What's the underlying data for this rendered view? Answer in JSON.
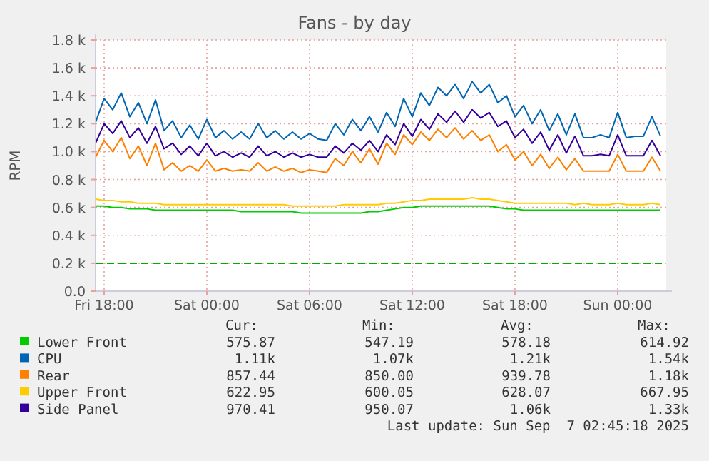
{
  "chart_data": {
    "type": "line",
    "title": "Fans - by day",
    "ylabel": "RPM",
    "x": [
      "2025-09-05T17:30",
      "2025-09-05T18:00",
      "2025-09-05T18:30",
      "2025-09-05T19:00",
      "2025-09-05T19:30",
      "2025-09-05T20:00",
      "2025-09-05T20:30",
      "2025-09-05T21:00",
      "2025-09-05T21:30",
      "2025-09-05T22:00",
      "2025-09-05T22:30",
      "2025-09-05T23:00",
      "2025-09-05T23:30",
      "2025-09-06T00:00",
      "2025-09-06T00:30",
      "2025-09-06T01:00",
      "2025-09-06T01:30",
      "2025-09-06T02:00",
      "2025-09-06T02:30",
      "2025-09-06T03:00",
      "2025-09-06T03:30",
      "2025-09-06T04:00",
      "2025-09-06T04:30",
      "2025-09-06T05:00",
      "2025-09-06T05:30",
      "2025-09-06T06:00",
      "2025-09-06T06:30",
      "2025-09-06T07:00",
      "2025-09-06T07:30",
      "2025-09-06T08:00",
      "2025-09-06T08:30",
      "2025-09-06T09:00",
      "2025-09-06T09:30",
      "2025-09-06T10:00",
      "2025-09-06T10:30",
      "2025-09-06T11:00",
      "2025-09-06T11:30",
      "2025-09-06T12:00",
      "2025-09-06T12:30",
      "2025-09-06T13:00",
      "2025-09-06T13:30",
      "2025-09-06T14:00",
      "2025-09-06T14:30",
      "2025-09-06T15:00",
      "2025-09-06T15:30",
      "2025-09-06T16:00",
      "2025-09-06T16:30",
      "2025-09-06T17:00",
      "2025-09-06T17:30",
      "2025-09-06T18:00",
      "2025-09-06T18:30",
      "2025-09-06T19:00",
      "2025-09-06T19:30",
      "2025-09-06T20:00",
      "2025-09-06T20:30",
      "2025-09-06T21:00",
      "2025-09-06T21:30",
      "2025-09-06T22:00",
      "2025-09-06T22:30",
      "2025-09-06T23:00",
      "2025-09-06T23:30",
      "2025-09-07T00:00",
      "2025-09-07T00:30",
      "2025-09-07T01:00",
      "2025-09-07T01:30",
      "2025-09-07T02:00",
      "2025-09-07T02:30"
    ],
    "xlim": [
      "2025-09-05T17:30",
      "2025-09-07T02:50"
    ],
    "xticks": [
      {
        "value": "2025-09-05T18:00",
        "label": "Fri 18:00"
      },
      {
        "value": "2025-09-06T00:00",
        "label": "Sat 00:00"
      },
      {
        "value": "2025-09-06T06:00",
        "label": "Sat 06:00"
      },
      {
        "value": "2025-09-06T12:00",
        "label": "Sat 12:00"
      },
      {
        "value": "2025-09-06T18:00",
        "label": "Sat 18:00"
      },
      {
        "value": "2025-09-07T00:00",
        "label": "Sun 00:00"
      }
    ],
    "ylim": [
      0,
      1800
    ],
    "yticks": [
      {
        "value": 0,
        "label": "0.0"
      },
      {
        "value": 200,
        "label": "0.2 k"
      },
      {
        "value": 400,
        "label": "0.4 k"
      },
      {
        "value": 600,
        "label": "0.6 k"
      },
      {
        "value": 800,
        "label": "0.8 k"
      },
      {
        "value": 1000,
        "label": "1.0 k"
      },
      {
        "value": 1200,
        "label": "1.2 k"
      },
      {
        "value": 1400,
        "label": "1.4 k"
      },
      {
        "value": 1600,
        "label": "1.6 k"
      },
      {
        "value": 1800,
        "label": "1.8 k"
      }
    ],
    "grid": true,
    "legend": "bottom left",
    "line_style": "solid",
    "ref_lines": [
      {
        "axis": "y",
        "value": 200,
        "color": "#00aa00",
        "line_style": "dashed"
      }
    ],
    "series": [
      {
        "name": "Lower Front",
        "color": "#00cc00",
        "values": [
          610,
          610,
          600,
          600,
          590,
          590,
          590,
          580,
          580,
          580,
          580,
          580,
          580,
          580,
          580,
          580,
          580,
          570,
          570,
          570,
          570,
          570,
          570,
          570,
          560,
          560,
          560,
          560,
          560,
          560,
          560,
          560,
          570,
          570,
          580,
          590,
          600,
          600,
          610,
          610,
          610,
          610,
          610,
          610,
          610,
          610,
          610,
          600,
          590,
          590,
          580,
          580,
          580,
          580,
          580,
          580,
          580,
          580,
          580,
          580,
          580,
          580,
          580,
          580,
          580,
          580,
          580
        ]
      },
      {
        "name": "CPU",
        "color": "#0066b3",
        "values": [
          1210,
          1380,
          1300,
          1420,
          1250,
          1350,
          1200,
          1370,
          1150,
          1220,
          1100,
          1190,
          1090,
          1230,
          1100,
          1150,
          1090,
          1140,
          1090,
          1200,
          1100,
          1150,
          1090,
          1140,
          1090,
          1130,
          1090,
          1080,
          1200,
          1120,
          1230,
          1150,
          1250,
          1140,
          1280,
          1180,
          1380,
          1250,
          1420,
          1330,
          1460,
          1400,
          1480,
          1380,
          1500,
          1420,
          1480,
          1350,
          1400,
          1250,
          1330,
          1200,
          1300,
          1150,
          1270,
          1120,
          1270,
          1100,
          1100,
          1120,
          1100,
          1280,
          1100,
          1110,
          1110,
          1250,
          1110
        ]
      },
      {
        "name": "Rear",
        "color": "#ff8000",
        "values": [
          960,
          1080,
          1000,
          1100,
          950,
          1040,
          900,
          1060,
          870,
          920,
          860,
          900,
          860,
          940,
          860,
          880,
          860,
          870,
          860,
          920,
          860,
          890,
          860,
          880,
          850,
          870,
          860,
          850,
          950,
          900,
          1000,
          920,
          1020,
          910,
          1060,
          980,
          1120,
          1050,
          1140,
          1080,
          1160,
          1100,
          1170,
          1090,
          1150,
          1080,
          1120,
          1000,
          1050,
          940,
          1000,
          900,
          980,
          880,
          960,
          870,
          950,
          860,
          860,
          860,
          860,
          980,
          860,
          860,
          860,
          960,
          860
        ]
      },
      {
        "name": "Upper Front",
        "color": "#ffcc00",
        "values": [
          660,
          650,
          650,
          640,
          640,
          630,
          630,
          630,
          620,
          620,
          620,
          620,
          620,
          620,
          620,
          620,
          620,
          620,
          620,
          620,
          620,
          620,
          620,
          610,
          610,
          610,
          610,
          610,
          610,
          620,
          620,
          620,
          620,
          620,
          630,
          630,
          640,
          650,
          650,
          660,
          660,
          660,
          660,
          660,
          670,
          660,
          660,
          650,
          640,
          630,
          630,
          630,
          630,
          630,
          630,
          630,
          620,
          630,
          620,
          620,
          620,
          630,
          620,
          620,
          620,
          630,
          620
        ]
      },
      {
        "name": "Side Panel",
        "color": "#330099",
        "values": [
          1060,
          1200,
          1130,
          1220,
          1100,
          1170,
          1060,
          1180,
          1020,
          1060,
          980,
          1040,
          970,
          1060,
          970,
          1000,
          960,
          990,
          960,
          1040,
          970,
          1000,
          960,
          990,
          960,
          980,
          960,
          960,
          1040,
          990,
          1060,
          1010,
          1080,
          1000,
          1120,
          1050,
          1200,
          1110,
          1230,
          1160,
          1270,
          1210,
          1290,
          1210,
          1300,
          1240,
          1280,
          1180,
          1220,
          1100,
          1160,
          1060,
          1140,
          1010,
          1120,
          990,
          1110,
          970,
          970,
          980,
          970,
          1120,
          970,
          970,
          970,
          1080,
          970
        ]
      }
    ],
    "annotations": [
      "Cur:",
      "Min:",
      "Avg:",
      "Max:",
      "575.87",
      "547.19",
      "578.18",
      "614.92",
      "1.11k",
      "1.07k",
      "1.21k",
      "1.54k",
      "857.44",
      "850.00",
      "939.78",
      "1.18k",
      "622.95",
      "600.05",
      "628.07",
      "667.95",
      "970.41",
      "950.07",
      "1.06k",
      "1.33k",
      "Last update: Sun Sep  7 02:45:18 2025"
    ]
  }
}
